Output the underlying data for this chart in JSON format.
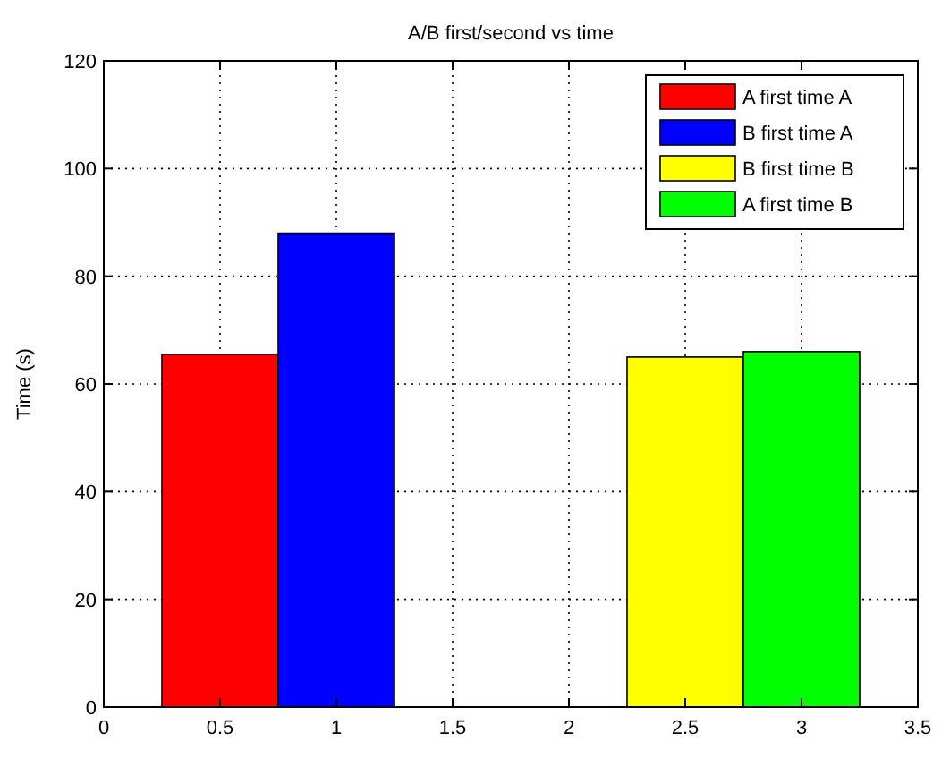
{
  "chart_data": {
    "type": "bar",
    "title": "A/B first/second vs time",
    "ylabel": "Time (s)",
    "series": [
      {
        "name": "A first time A",
        "color": "#ff0000",
        "x": [
          0.5
        ],
        "values": [
          65.5
        ]
      },
      {
        "name": "B first time A",
        "color": "#0000ff",
        "x": [
          1
        ],
        "values": [
          88
        ]
      },
      {
        "name": "B first time B",
        "color": "#ffff00",
        "x": [
          2.5
        ],
        "values": [
          65
        ]
      },
      {
        "name": "A first time B",
        "color": "#00ff00",
        "x": [
          3
        ],
        "values": [
          66
        ]
      }
    ],
    "xlim": [
      0,
      3.5
    ],
    "xticks": [
      0,
      0.5,
      1,
      1.5,
      2,
      2.5,
      3,
      3.5
    ],
    "ylim": [
      0,
      120
    ],
    "yticks": [
      0,
      20,
      40,
      60,
      80,
      100,
      120
    ],
    "grid": true,
    "legend": "top right"
  }
}
